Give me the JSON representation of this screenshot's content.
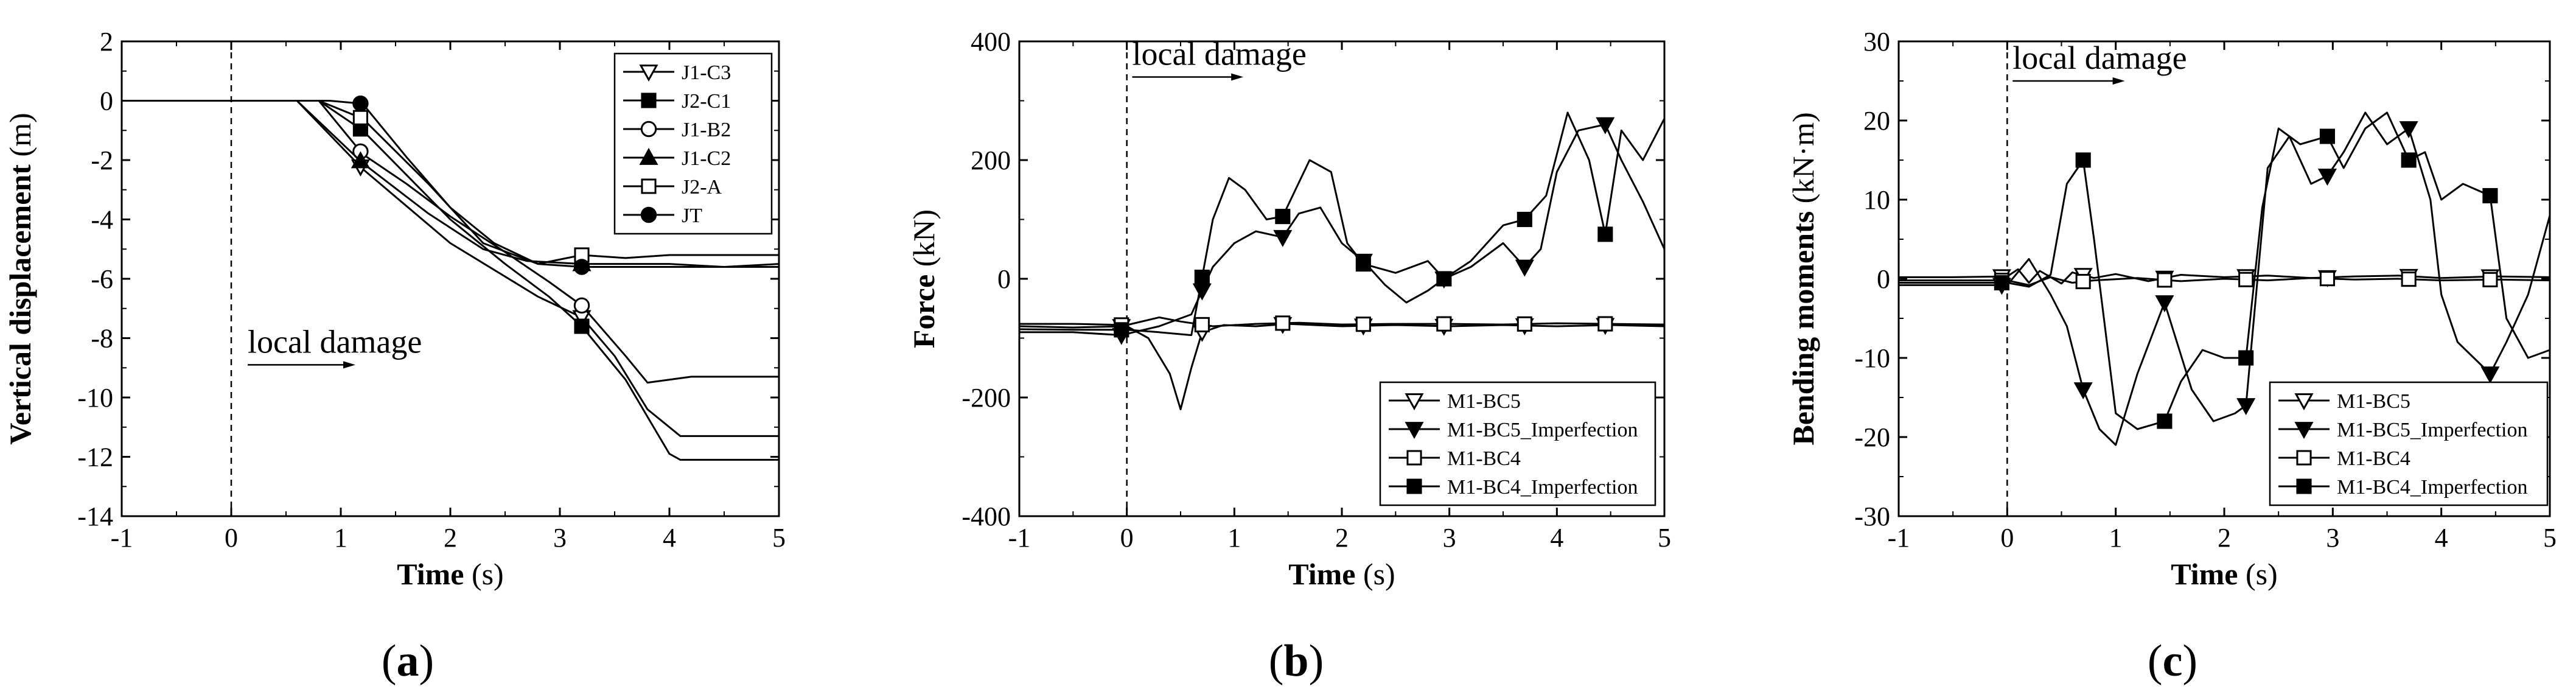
{
  "chart_data": [
    {
      "type": "line",
      "panel_label": "a",
      "xlabel": "Time",
      "xunit": "(s)",
      "ylabel": "Vertical displacement",
      "yunit": "(m)",
      "xlim": [
        -1,
        5
      ],
      "ylim": [
        -14,
        2
      ],
      "xticks": [
        "-1",
        "0",
        "1",
        "2",
        "3",
        "4",
        "5"
      ],
      "yticks": [
        "2",
        "0",
        "-2",
        "-4",
        "-6",
        "-8",
        "-10",
        "-12",
        "-14"
      ],
      "annotation": {
        "text": "local damage",
        "x": 0.15,
        "y": -8.9,
        "arrow": [
          0.15,
          1.1
        ]
      },
      "marker_x": 3.2,
      "legend_position": "top-right",
      "series": [
        {
          "name": "J1-C3",
          "marker": "tri-down-open",
          "marker_x": 1.18,
          "x": [
            -1,
            0.6,
            1.2,
            2.0,
            2.8,
            3.2,
            3.5,
            3.8,
            4.1,
            4.5,
            5
          ],
          "y": [
            0,
            0,
            -2.3,
            -4.8,
            -6.6,
            -7.3,
            -8.6,
            -10.4,
            -11.3,
            -11.3,
            -11.3
          ]
        },
        {
          "name": "J2-C1",
          "marker": "square-filled",
          "marker_x": 1.18,
          "x": [
            -1,
            0.8,
            1.2,
            1.6,
            2.0,
            2.5,
            2.9,
            3.2,
            3.6,
            4.0,
            4.1,
            4.5,
            5
          ],
          "y": [
            0,
            0,
            -1.0,
            -2.5,
            -4.0,
            -5.5,
            -6.6,
            -7.6,
            -9.4,
            -11.9,
            -12.1,
            -12.1,
            -12.1
          ]
        },
        {
          "name": "J1-B2",
          "marker": "circle-open",
          "marker_x": 1.18,
          "x": [
            -1,
            0.8,
            1.2,
            1.6,
            2.0,
            2.5,
            2.9,
            3.2,
            3.6,
            3.8,
            4.2,
            5
          ],
          "y": [
            0,
            0,
            -1.8,
            -2.8,
            -3.9,
            -5.1,
            -6.1,
            -6.9,
            -8.6,
            -9.5,
            -9.3,
            -9.3
          ]
        },
        {
          "name": "J1-C2",
          "marker": "tri-up-filled",
          "marker_x": 1.18,
          "x": [
            -1,
            0.6,
            1.2,
            1.8,
            2.3,
            2.7,
            3.2,
            3.6,
            4.0,
            4.5,
            5
          ],
          "y": [
            0,
            0,
            -2.1,
            -3.8,
            -5.0,
            -5.4,
            -5.5,
            -5.5,
            -5.5,
            -5.6,
            -5.5
          ]
        },
        {
          "name": "J2-A",
          "marker": "square-open",
          "marker_x": 1.18,
          "x": [
            -1,
            0.8,
            1.2,
            1.8,
            2.3,
            2.8,
            3.2,
            3.6,
            4.0,
            4.5,
            5
          ],
          "y": [
            0,
            0,
            -0.6,
            -2.8,
            -4.8,
            -5.5,
            -5.2,
            -5.3,
            -5.2,
            -5.2,
            -5.2
          ]
        },
        {
          "name": "JT",
          "marker": "circle-filled",
          "marker_x": 1.18,
          "x": [
            -1,
            0.9,
            1.2,
            1.6,
            2.0,
            2.4,
            2.8,
            3.2,
            3.6,
            4.0,
            4.5,
            5
          ],
          "y": [
            0,
            0,
            -0.1,
            -1.9,
            -3.6,
            -4.8,
            -5.5,
            -5.6,
            -5.6,
            -5.6,
            -5.6,
            -5.6
          ]
        }
      ]
    },
    {
      "type": "line",
      "panel_label": "b",
      "xlabel": "Time",
      "xunit": "(s)",
      "ylabel": "Force",
      "yunit": "(kN)",
      "xlim": [
        -1,
        5
      ],
      "ylim": [
        -400,
        400
      ],
      "xticks": [
        "-1",
        "0",
        "1",
        "2",
        "3",
        "4",
        "5"
      ],
      "yticks": [
        "400",
        "200",
        "0",
        "-200",
        "-400"
      ],
      "annotation": {
        "text": "local damage",
        "x": 0.05,
        "y": 340,
        "arrow": [
          0.05,
          1.05
        ]
      },
      "legend_position": "bottom-right",
      "series": [
        {
          "name": "M1-BC5",
          "marker": "tri-down-open",
          "marker_x": [
            -0.05,
            0.7,
            1.45,
            2.2,
            2.95,
            3.7,
            4.45
          ],
          "x": [
            -1,
            -0.5,
            0,
            0.2,
            0.4,
            0.5,
            0.6,
            0.7,
            0.9,
            1.2,
            1.5,
            2.0,
            2.5,
            3.0,
            3.5,
            4.0,
            4.5,
            5
          ],
          "y": [
            -80,
            -82,
            -80,
            -100,
            -160,
            -220,
            -150,
            -90,
            -78,
            -80,
            -76,
            -80,
            -78,
            -80,
            -78,
            -80,
            -78,
            -80
          ]
        },
        {
          "name": "M1-BC5_Imperfection",
          "marker": "tri-down-filled",
          "marker_x": [
            -0.05,
            0.7,
            1.45,
            2.2,
            2.95,
            3.7,
            4.45
          ],
          "x": [
            -1,
            -0.5,
            -0.05,
            0.3,
            0.6,
            0.8,
            1.0,
            1.2,
            1.45,
            1.6,
            1.8,
            2.0,
            2.2,
            2.4,
            2.6,
            2.8,
            2.95,
            3.2,
            3.5,
            3.7,
            3.85,
            4.0,
            4.2,
            4.45,
            4.6,
            4.8,
            5
          ],
          "y": [
            -90,
            -90,
            -95,
            -80,
            -60,
            20,
            60,
            80,
            70,
            110,
            120,
            60,
            30,
            -10,
            -40,
            -20,
            0,
            20,
            60,
            20,
            50,
            180,
            250,
            260,
            200,
            130,
            50
          ]
        },
        {
          "name": "M1-BC4",
          "marker": "square-open",
          "marker_x": [
            -0.05,
            0.7,
            1.45,
            2.2,
            2.95,
            3.7,
            4.45
          ],
          "x": [
            -1,
            -0.5,
            0,
            0.3,
            0.5,
            0.8,
            1.2,
            1.6,
            2.0,
            2.5,
            3.0,
            3.5,
            4.0,
            4.5,
            5
          ],
          "y": [
            -76,
            -76,
            -78,
            -65,
            -72,
            -80,
            -76,
            -74,
            -77,
            -76,
            -76,
            -77,
            -75,
            -76,
            -77
          ]
        },
        {
          "name": "M1-BC4_Imperfection",
          "marker": "square-filled",
          "marker_x": [
            -0.05,
            0.7,
            1.45,
            2.2,
            2.95,
            3.7,
            4.45
          ],
          "x": [
            -1,
            -0.5,
            0,
            0.3,
            0.6,
            0.8,
            0.95,
            1.1,
            1.3,
            1.45,
            1.7,
            1.9,
            2.05,
            2.2,
            2.5,
            2.8,
            2.95,
            3.2,
            3.5,
            3.7,
            3.9,
            4.1,
            4.3,
            4.45,
            4.6,
            4.8,
            5
          ],
          "y": [
            -85,
            -86,
            -86,
            -90,
            -95,
            100,
            170,
            150,
            100,
            105,
            200,
            180,
            60,
            25,
            10,
            30,
            0,
            30,
            90,
            100,
            140,
            280,
            200,
            75,
            250,
            200,
            270
          ]
        }
      ]
    },
    {
      "type": "line",
      "panel_label": "c",
      "xlabel": "Time",
      "xunit": "(s)",
      "ylabel": "Bending moments",
      "yunit": "(kN·m)",
      "xlim": [
        -1,
        5
      ],
      "ylim": [
        -30,
        30
      ],
      "xticks": [
        "-1",
        "0",
        "1",
        "2",
        "3",
        "4",
        "5"
      ],
      "yticks": [
        "30",
        "20",
        "10",
        "0",
        "-10",
        "-20",
        "-30"
      ],
      "annotation": {
        "text": "local damage",
        "x": 0.05,
        "y": 25,
        "arrow": [
          0.05,
          1.05
        ]
      },
      "legend_position": "bottom-right",
      "series": [
        {
          "name": "M1-BC5",
          "marker": "tri-down-open",
          "marker_x": [
            -0.05,
            0.7,
            1.45,
            2.2,
            2.95,
            3.7,
            4.45
          ],
          "x": [
            -1,
            -0.5,
            0,
            0.1,
            0.2,
            0.3,
            0.4,
            0.5,
            0.6,
            0.8,
            1.0,
            1.3,
            1.6,
            2.0,
            2.4,
            2.8,
            3.2,
            3.6,
            4.0,
            4.5,
            5
          ],
          "y": [
            0.2,
            0.2,
            0.3,
            1.2,
            -0.5,
            1.0,
            0.2,
            -0.6,
            0.8,
            0.1,
            0.6,
            -0.3,
            0.5,
            0.2,
            0.4,
            0.1,
            0.3,
            0.4,
            0.1,
            0.3,
            0.2
          ]
        },
        {
          "name": "M1-BC5_Imperfection",
          "marker": "tri-down-filled",
          "marker_x": [
            -0.05,
            0.7,
            1.45,
            2.2,
            2.95,
            3.7,
            4.45
          ],
          "x": [
            -1,
            -0.5,
            0,
            0.2,
            0.4,
            0.55,
            0.7,
            0.85,
            1.0,
            1.2,
            1.45,
            1.7,
            1.9,
            2.1,
            2.2,
            2.4,
            2.6,
            2.8,
            2.95,
            3.1,
            3.3,
            3.5,
            3.7,
            3.9,
            4.0,
            4.15,
            4.3,
            4.45,
            4.6,
            4.8,
            5
          ],
          "y": [
            -0.8,
            -0.8,
            -0.8,
            2.5,
            -2.0,
            -6.0,
            -14.0,
            -19.0,
            -21.0,
            -12.0,
            -3.0,
            -14.0,
            -18.0,
            -17.0,
            -16.0,
            14.0,
            18.0,
            12.0,
            13.0,
            16.0,
            21.0,
            17.0,
            19.0,
            10.0,
            -2.0,
            -8.0,
            -10.0,
            -12.0,
            -8.0,
            -2.0,
            8.0
          ]
        },
        {
          "name": "M1-BC4",
          "marker": "square-open",
          "marker_x": [
            -0.05,
            0.7,
            1.45,
            2.2,
            2.95,
            3.7,
            4.45
          ],
          "x": [
            -1,
            -0.5,
            0,
            0.2,
            0.4,
            0.6,
            0.8,
            1.2,
            1.6,
            2.0,
            2.4,
            2.8,
            3.2,
            3.6,
            4.0,
            4.5,
            5
          ],
          "y": [
            -0.2,
            -0.2,
            -0.2,
            -0.8,
            0.2,
            -0.5,
            -0.2,
            0.1,
            -0.3,
            0.0,
            -0.2,
            0.1,
            -0.1,
            0.0,
            -0.2,
            -0.1,
            -0.2
          ]
        },
        {
          "name": "M1-BC4_Imperfection",
          "marker": "square-filled",
          "marker_x": [
            -0.05,
            0.7,
            1.45,
            2.2,
            2.95,
            3.7,
            4.45
          ],
          "x": [
            -1,
            -0.5,
            0,
            0.2,
            0.4,
            0.55,
            0.7,
            0.8,
            1.0,
            1.2,
            1.45,
            1.6,
            1.8,
            2.0,
            2.2,
            2.35,
            2.5,
            2.7,
            2.95,
            3.1,
            3.3,
            3.5,
            3.7,
            3.85,
            4.0,
            4.2,
            4.45,
            4.6,
            4.8,
            5
          ],
          "y": [
            -0.5,
            -0.5,
            -0.5,
            -1.0,
            0.5,
            12.0,
            15.0,
            5.0,
            -17.0,
            -19.0,
            -18.0,
            -13.0,
            -9.0,
            -10.0,
            -10.0,
            9.0,
            19.0,
            17.0,
            18.0,
            14.0,
            19.0,
            21.0,
            15.0,
            16.0,
            10.0,
            12.0,
            10.5,
            -5.0,
            -10.0,
            -9.0
          ]
        }
      ]
    }
  ]
}
